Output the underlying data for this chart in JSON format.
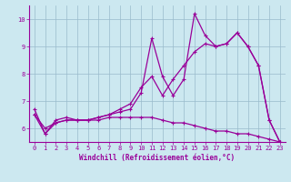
{
  "xlabel": "Windchill (Refroidissement éolien,°C)",
  "background_color": "#cce8f0",
  "line_color": "#990099",
  "grid_color": "#99bbcc",
  "x_hours": [
    0,
    1,
    2,
    3,
    4,
    5,
    6,
    7,
    8,
    9,
    10,
    11,
    12,
    13,
    14,
    15,
    16,
    17,
    18,
    19,
    20,
    21,
    22,
    23
  ],
  "line1_y": [
    6.7,
    5.8,
    6.3,
    6.4,
    6.3,
    6.3,
    6.4,
    6.5,
    6.6,
    6.7,
    7.3,
    9.3,
    7.9,
    7.2,
    7.8,
    10.2,
    9.4,
    9.0,
    9.1,
    9.5,
    9.0,
    8.3,
    6.3,
    5.5
  ],
  "line2_y": [
    6.5,
    6.0,
    6.2,
    6.3,
    6.3,
    6.3,
    6.4,
    6.5,
    6.7,
    6.9,
    7.5,
    7.9,
    7.2,
    7.8,
    8.3,
    8.8,
    9.1,
    9.0,
    9.1,
    9.5,
    9.0,
    8.3,
    6.3,
    5.5
  ],
  "line3_y": [
    6.5,
    5.8,
    6.2,
    6.3,
    6.3,
    6.3,
    6.3,
    6.4,
    6.4,
    6.4,
    6.4,
    6.4,
    6.3,
    6.2,
    6.2,
    6.1,
    6.0,
    5.9,
    5.9,
    5.8,
    5.8,
    5.7,
    5.6,
    5.5
  ],
  "ylim": [
    5.5,
    10.5
  ],
  "yticks": [
    6,
    7,
    8,
    9,
    10
  ],
  "xlim": [
    -0.5,
    23.5
  ],
  "xticks": [
    0,
    1,
    2,
    3,
    4,
    5,
    6,
    7,
    8,
    9,
    10,
    11,
    12,
    13,
    14,
    15,
    16,
    17,
    18,
    19,
    20,
    21,
    22,
    23
  ],
  "xlabel_fontsize": 5.5,
  "tick_fontsize": 5.0,
  "linewidth": 0.9,
  "markersize": 3.0
}
